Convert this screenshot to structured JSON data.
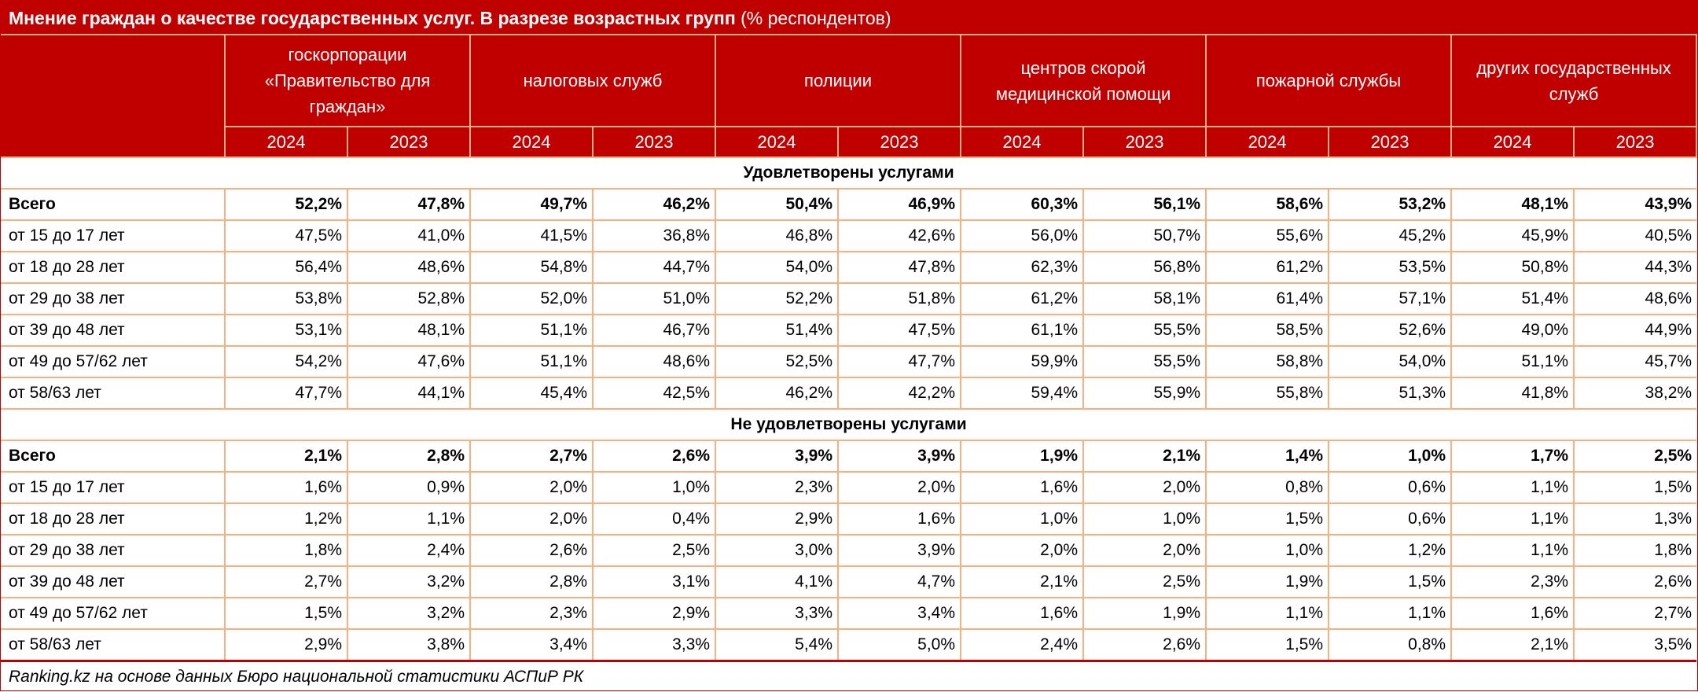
{
  "title": {
    "bold": "Мнение граждан о качестве государственных услуг. В разрезе возрастных групп",
    "normal": "(% респондентов)"
  },
  "columns": [
    "госкорпорации «Правительство для граждан»",
    "налоговых служб",
    "полиции",
    "центров скорой медицинской помощи",
    "пожарной службы",
    "других государственных служб"
  ],
  "years": [
    "2024",
    "2023"
  ],
  "sections": [
    {
      "title": "Удовлетворены услугами",
      "rows": [
        {
          "label": "Всего",
          "values": [
            "52,2%",
            "47,8%",
            "49,7%",
            "46,2%",
            "50,4%",
            "46,9%",
            "60,3%",
            "56,1%",
            "58,6%",
            "53,2%",
            "48,1%",
            "43,9%"
          ]
        },
        {
          "label": "от 15 до 17 лет",
          "values": [
            "47,5%",
            "41,0%",
            "41,5%",
            "36,8%",
            "46,8%",
            "42,6%",
            "56,0%",
            "50,7%",
            "55,6%",
            "45,2%",
            "45,9%",
            "40,5%"
          ]
        },
        {
          "label": "от 18 до 28 лет",
          "values": [
            "56,4%",
            "48,6%",
            "54,8%",
            "44,7%",
            "54,0%",
            "47,8%",
            "62,3%",
            "56,8%",
            "61,2%",
            "53,5%",
            "50,8%",
            "44,3%"
          ]
        },
        {
          "label": "от 29 до 38 лет",
          "values": [
            "53,8%",
            "52,8%",
            "52,0%",
            "51,0%",
            "52,2%",
            "51,8%",
            "61,2%",
            "58,1%",
            "61,4%",
            "57,1%",
            "51,4%",
            "48,6%"
          ]
        },
        {
          "label": "от 39 до 48 лет",
          "values": [
            "53,1%",
            "48,1%",
            "51,1%",
            "46,7%",
            "51,4%",
            "47,5%",
            "61,1%",
            "55,5%",
            "58,5%",
            "52,6%",
            "49,0%",
            "44,9%"
          ]
        },
        {
          "label": "от 49 до 57/62 лет",
          "values": [
            "54,2%",
            "47,6%",
            "51,1%",
            "48,6%",
            "52,5%",
            "47,7%",
            "59,9%",
            "55,5%",
            "58,8%",
            "54,0%",
            "51,1%",
            "45,7%"
          ]
        },
        {
          "label": "от 58/63 лет",
          "values": [
            "47,7%",
            "44,1%",
            "45,4%",
            "42,5%",
            "46,2%",
            "42,2%",
            "59,4%",
            "55,9%",
            "55,8%",
            "51,3%",
            "41,8%",
            "38,2%"
          ]
        }
      ]
    },
    {
      "title": "Не удовлетворены услугами",
      "rows": [
        {
          "label": "Всего",
          "values": [
            "2,1%",
            "2,8%",
            "2,7%",
            "2,6%",
            "3,9%",
            "3,9%",
            "1,9%",
            "2,1%",
            "1,4%",
            "1,0%",
            "1,7%",
            "2,5%"
          ]
        },
        {
          "label": "от 15 до 17 лет",
          "values": [
            "1,6%",
            "0,9%",
            "2,0%",
            "1,0%",
            "2,3%",
            "2,0%",
            "1,6%",
            "2,0%",
            "0,8%",
            "0,6%",
            "1,1%",
            "1,5%"
          ]
        },
        {
          "label": "от 18 до 28 лет",
          "values": [
            "1,2%",
            "1,1%",
            "2,0%",
            "0,4%",
            "2,9%",
            "1,6%",
            "1,0%",
            "1,0%",
            "1,5%",
            "0,6%",
            "1,1%",
            "1,3%"
          ]
        },
        {
          "label": "от 29 до 38 лет",
          "values": [
            "1,8%",
            "2,4%",
            "2,6%",
            "2,5%",
            "3,0%",
            "3,9%",
            "2,0%",
            "2,0%",
            "1,0%",
            "1,2%",
            "1,1%",
            "1,8%"
          ]
        },
        {
          "label": "от 39 до 48 лет",
          "values": [
            "2,7%",
            "3,2%",
            "2,8%",
            "3,1%",
            "4,1%",
            "4,7%",
            "2,1%",
            "2,5%",
            "1,9%",
            "1,5%",
            "2,3%",
            "2,6%"
          ]
        },
        {
          "label": "от 49 до 57/62 лет",
          "values": [
            "1,5%",
            "3,2%",
            "2,3%",
            "2,9%",
            "3,3%",
            "3,4%",
            "1,6%",
            "1,9%",
            "1,1%",
            "1,1%",
            "1,6%",
            "2,7%"
          ]
        },
        {
          "label": "от 58/63 лет",
          "values": [
            "2,9%",
            "3,8%",
            "3,4%",
            "3,3%",
            "5,4%",
            "5,0%",
            "2,4%",
            "2,6%",
            "1,5%",
            "0,8%",
            "2,1%",
            "3,5%"
          ]
        }
      ]
    }
  ],
  "footer": "Ranking.kz на основе данных Бюро национальной статистики АСПиР РК",
  "colors": {
    "header_bg": "#c00000",
    "border": "#f4b183"
  }
}
